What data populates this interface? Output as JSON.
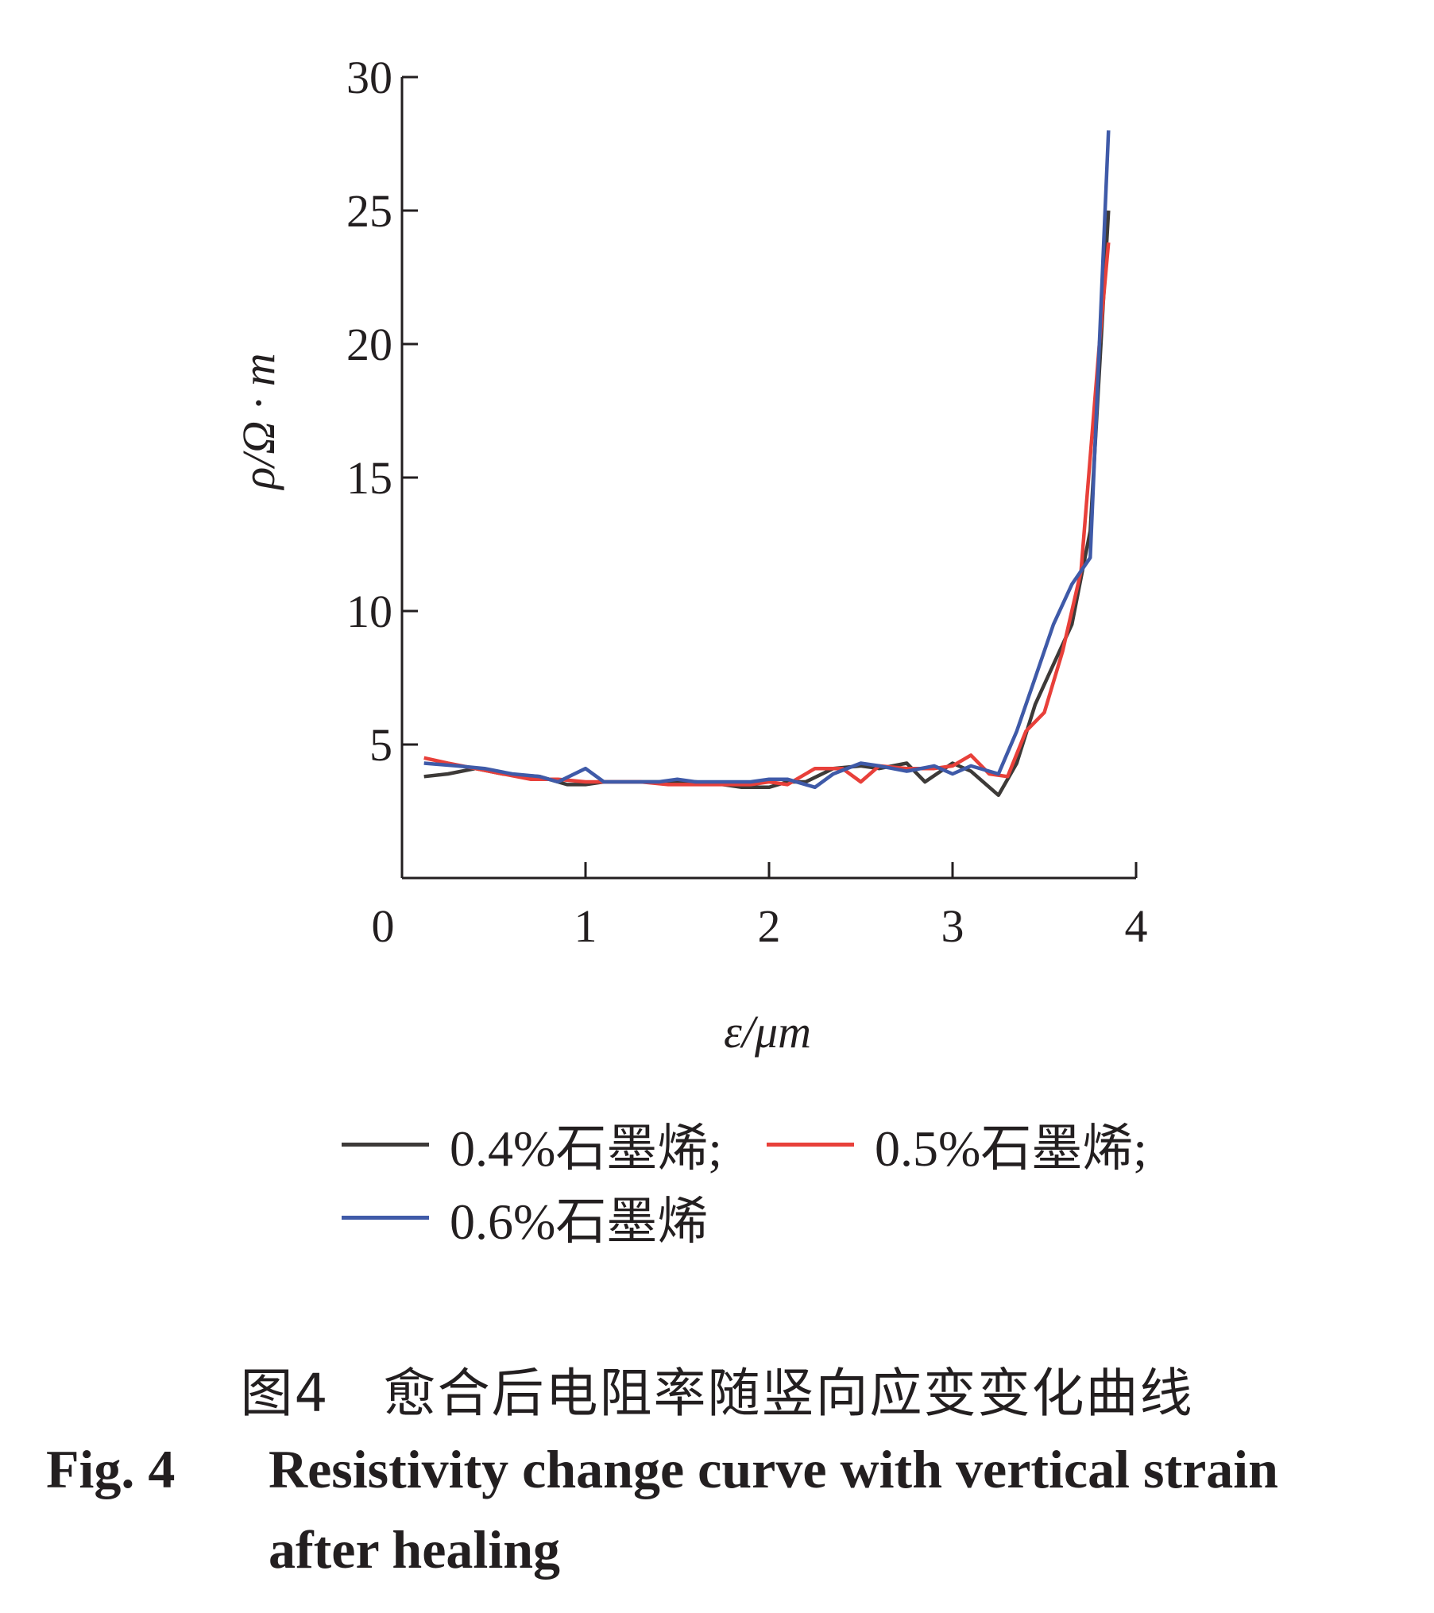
{
  "chart_data": {
    "type": "line",
    "xlabel": "ε/μm",
    "ylabel": "ρ/Ω · m",
    "xlim": [
      0,
      4
    ],
    "ylim": [
      0,
      30
    ],
    "x_ticks": [
      "0",
      "1",
      "2",
      "3",
      "4"
    ],
    "y_ticks": [
      "5",
      "10",
      "15",
      "20",
      "25",
      "30"
    ],
    "grid": false,
    "legend_position": "bottom",
    "series": [
      {
        "name": "0.4%石墨烯",
        "color": "#3d3a38",
        "x": [
          0.12,
          0.25,
          0.4,
          0.55,
          0.75,
          0.9,
          1.0,
          1.1,
          1.25,
          1.4,
          1.5,
          1.6,
          1.75,
          1.85,
          2.0,
          2.1,
          2.2,
          2.35,
          2.5,
          2.6,
          2.75,
          2.85,
          3.0,
          3.1,
          3.25,
          3.35,
          3.45,
          3.55,
          3.65,
          3.75,
          3.85
        ],
        "values": [
          3.8,
          3.9,
          4.1,
          3.9,
          3.8,
          3.5,
          3.5,
          3.6,
          3.6,
          3.6,
          3.6,
          3.6,
          3.5,
          3.4,
          3.4,
          3.6,
          3.6,
          4.1,
          4.2,
          4.1,
          4.3,
          3.6,
          4.3,
          4.0,
          3.1,
          4.3,
          6.5,
          8.0,
          9.5,
          13.0,
          25.0
        ]
      },
      {
        "name": "0.5%石墨烯",
        "color": "#e8403a",
        "x": [
          0.12,
          0.25,
          0.4,
          0.55,
          0.7,
          0.85,
          1.0,
          1.15,
          1.3,
          1.45,
          1.6,
          1.75,
          1.9,
          2.0,
          2.1,
          2.25,
          2.4,
          2.5,
          2.6,
          2.75,
          2.9,
          3.0,
          3.1,
          3.2,
          3.3,
          3.4,
          3.5,
          3.6,
          3.7,
          3.8,
          3.85
        ],
        "values": [
          4.5,
          4.3,
          4.1,
          3.9,
          3.7,
          3.7,
          3.6,
          3.6,
          3.6,
          3.5,
          3.5,
          3.5,
          3.5,
          3.6,
          3.5,
          4.1,
          4.1,
          3.6,
          4.2,
          4.1,
          4.1,
          4.2,
          4.6,
          3.9,
          3.8,
          5.5,
          6.2,
          8.5,
          11.5,
          20.0,
          23.8
        ]
      },
      {
        "name": "0.6%石墨烯",
        "color": "#3f5aa8",
        "x": [
          0.12,
          0.3,
          0.45,
          0.6,
          0.75,
          0.85,
          1.0,
          1.1,
          1.25,
          1.4,
          1.5,
          1.6,
          1.75,
          1.9,
          2.0,
          2.1,
          2.25,
          2.35,
          2.5,
          2.6,
          2.75,
          2.9,
          3.0,
          3.1,
          3.25,
          3.35,
          3.45,
          3.55,
          3.65,
          3.75,
          3.85
        ],
        "values": [
          4.3,
          4.2,
          4.1,
          3.9,
          3.8,
          3.6,
          4.1,
          3.6,
          3.6,
          3.6,
          3.7,
          3.6,
          3.6,
          3.6,
          3.7,
          3.7,
          3.4,
          3.9,
          4.3,
          4.2,
          4.0,
          4.2,
          3.9,
          4.2,
          3.9,
          5.5,
          7.5,
          9.5,
          11.0,
          12.0,
          28.0
        ]
      }
    ]
  },
  "legend": {
    "items": [
      {
        "label": "0.4%石墨烯;",
        "color": "#3d3a38"
      },
      {
        "label": "0.5%石墨烯;",
        "color": "#e8403a"
      },
      {
        "label": "0.6%石墨烯",
        "color": "#3f5aa8"
      }
    ]
  },
  "caption": {
    "cn": "图4　愈合后电阻率随竖向应变变化曲线",
    "en_fig": "Fig. 4",
    "en_line1": "Resistivity change curve with vertical strain",
    "en_line2": "after healing"
  }
}
